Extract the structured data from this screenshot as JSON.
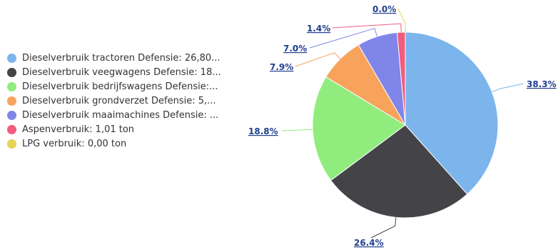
{
  "chart_data": {
    "type": "pie",
    "title": "",
    "legend_position": "left",
    "slices": [
      {
        "name": "Dieselverbruik tractoren Defensie: 26,80...",
        "percent": 38.3,
        "label": "38.3%",
        "color": "#7cb5ec"
      },
      {
        "name": "Dieselverbruik veegwagens Defensie: 18...",
        "percent": 26.4,
        "label": "26.4%",
        "color": "#434348"
      },
      {
        "name": "Dieselverbruik bedrijfswagens Defensie:...",
        "percent": 18.8,
        "label": "18.8%",
        "color": "#90ed7d"
      },
      {
        "name": "Dieselverbruik grondverzet Defensie: 5,...",
        "percent": 7.9,
        "label": "7.9%",
        "color": "#f7a35c"
      },
      {
        "name": "Dieselverbruik maaimachines Defensie: ...",
        "percent": 7.0,
        "label": "7.0%",
        "color": "#8085e9"
      },
      {
        "name": "Aspenverbruik: 1,01 ton",
        "percent": 1.4,
        "label": "1.4%",
        "color": "#f15c80"
      },
      {
        "name": "LPG verbruik: 0,00 ton",
        "percent": 0.0,
        "label": "0.0%",
        "color": "#e4d354"
      }
    ]
  }
}
